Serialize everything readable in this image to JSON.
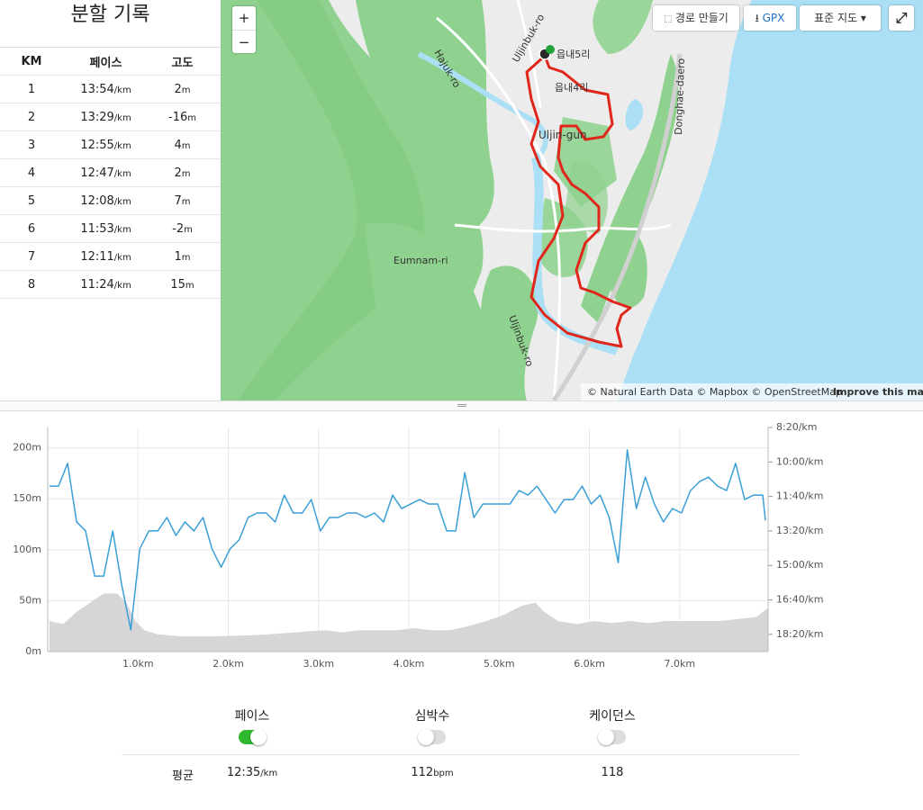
{
  "splits": {
    "title": "분할 기록",
    "headers": [
      "KM",
      "페이스",
      "고도"
    ],
    "rows": [
      {
        "km": 1,
        "pace": "13:54",
        "pace_unit": "/km",
        "elev": 2,
        "elev_unit": "m"
      },
      {
        "km": 2,
        "pace": "13:29",
        "pace_unit": "/km",
        "elev": -16,
        "elev_unit": "m"
      },
      {
        "km": 3,
        "pace": "12:55",
        "pace_unit": "/km",
        "elev": 4,
        "elev_unit": "m"
      },
      {
        "km": 4,
        "pace": "12:47",
        "pace_unit": "/km",
        "elev": 2,
        "elev_unit": "m"
      },
      {
        "km": 5,
        "pace": "12:08",
        "pace_unit": "/km",
        "elev": 7,
        "elev_unit": "m"
      },
      {
        "km": 6,
        "pace": "11:53",
        "pace_unit": "/km",
        "elev": -2,
        "elev_unit": "m"
      },
      {
        "km": 7,
        "pace": "12:11",
        "pace_unit": "/km",
        "elev": 1,
        "elev_unit": "m"
      },
      {
        "km": 8,
        "pace": "11:24",
        "pace_unit": "/km",
        "elev": 15,
        "elev_unit": "m"
      }
    ]
  },
  "map": {
    "zoom_in": "+",
    "zoom_out": "−",
    "buttons": [
      "경로 만들기",
      "GPX",
      "표준 지도"
    ],
    "labels": [
      "읍내5리",
      "읍내4리",
      "Uljin-gun",
      "Eumnam-ri",
      "Hajuk-ro",
      "Uljinbuk-ro",
      "Uljinbuk-ro",
      "Donghae-daero"
    ],
    "attribution": "© Natural Earth Data © Mapbox © OpenStreetMap",
    "improve": "Improve this map"
  },
  "chart_data": {
    "type": "line",
    "xlim": [
      0,
      7.98
    ],
    "ylim": [
      0,
      220
    ],
    "y2lim": [
      1150,
      500
    ],
    "grid": true,
    "xticks": [
      {
        "value": 1,
        "label": "1.0km"
      },
      {
        "value": 2,
        "label": "2.0km"
      },
      {
        "value": 3,
        "label": "3.0km"
      },
      {
        "value": 4,
        "label": "4.0km"
      },
      {
        "value": 5,
        "label": "5.0km"
      },
      {
        "value": 6,
        "label": "6.0km"
      },
      {
        "value": 7,
        "label": "7.0km"
      }
    ],
    "yticks": [
      {
        "value": 0,
        "label": "0m"
      },
      {
        "value": 50,
        "label": "50m"
      },
      {
        "value": 100,
        "label": "100m"
      },
      {
        "value": 150,
        "label": "150m"
      },
      {
        "value": 200,
        "label": "200m"
      }
    ],
    "y2ticks": [
      {
        "value": 500,
        "label": "8:20/km"
      },
      {
        "value": 600,
        "label": "10:00/km"
      },
      {
        "value": 700,
        "label": "11:40/km"
      },
      {
        "value": 800,
        "label": "13:20/km"
      },
      {
        "value": 900,
        "label": "15:00/km"
      },
      {
        "value": 1000,
        "label": "16:40/km"
      },
      {
        "value": 1100,
        "label": "18:20/km"
      }
    ],
    "series": [
      {
        "type": "area",
        "color": "#d6d6d6",
        "x": [
          0.02,
          0.17,
          0.32,
          0.47,
          0.62,
          0.77,
          0.87,
          0.97,
          1.07,
          1.22,
          1.47,
          1.86,
          2.26,
          2.46,
          2.76,
          3.06,
          3.26,
          3.46,
          3.66,
          3.86,
          4.06,
          4.26,
          4.46,
          4.66,
          4.86,
          5.05,
          5.25,
          5.4,
          5.5,
          5.65,
          5.86,
          6.05,
          6.25,
          6.45,
          6.65,
          6.85,
          7.05,
          7.25,
          7.45,
          7.65,
          7.85,
          7.98
        ],
        "values": [
          30,
          27,
          39,
          48,
          57,
          57,
          48,
          30,
          21,
          17,
          15,
          15,
          16,
          17,
          19,
          21,
          19,
          21,
          21,
          21,
          23,
          21,
          21,
          25,
          30,
          36,
          45,
          48,
          39,
          30,
          27,
          30,
          28,
          30,
          28,
          30,
          30,
          30,
          30,
          32,
          34,
          43
        ]
      },
      {
        "type": "line",
        "axis": "y2",
        "color": "#3a9fd6",
        "x": [
          0.02,
          0.12,
          0.22,
          0.32,
          0.42,
          0.52,
          0.62,
          0.72,
          0.82,
          0.92,
          1.02,
          1.12,
          1.22,
          1.32,
          1.42,
          1.52,
          1.62,
          1.72,
          1.82,
          1.92,
          2.02,
          2.12,
          2.22,
          2.32,
          2.42,
          2.52,
          2.62,
          2.72,
          2.82,
          2.92,
          3.02,
          3.12,
          3.22,
          3.32,
          3.42,
          3.52,
          3.62,
          3.72,
          3.82,
          3.92,
          4.02,
          4.12,
          4.22,
          4.32,
          4.42,
          4.52,
          4.62,
          4.72,
          4.82,
          4.92,
          5.02,
          5.12,
          5.22,
          5.32,
          5.42,
          5.52,
          5.62,
          5.72,
          5.82,
          5.92,
          6.02,
          6.12,
          6.22,
          6.32,
          6.42,
          6.52,
          6.62,
          6.72,
          6.82,
          6.92,
          7.02,
          7.12,
          7.22,
          7.32,
          7.42,
          7.52,
          7.62,
          7.72,
          7.82,
          7.92,
          7.95
        ],
        "values": [
          670,
          670,
          604,
          774,
          800,
          931,
          931,
          800,
          957,
          1087,
          852,
          800,
          800,
          761,
          813,
          774,
          800,
          761,
          852,
          905,
          852,
          826,
          761,
          748,
          748,
          774,
          696,
          748,
          748,
          709,
          800,
          761,
          761,
          748,
          748,
          761,
          748,
          774,
          696,
          735,
          722,
          709,
          722,
          722,
          800,
          800,
          631,
          761,
          722,
          722,
          722,
          722,
          683,
          696,
          670,
          709,
          748,
          709,
          709,
          670,
          722,
          696,
          761,
          892,
          565,
          735,
          644,
          722,
          774,
          735,
          748,
          683,
          657,
          644,
          670,
          683,
          604,
          709,
          696,
          696,
          769
        ]
      }
    ]
  },
  "stats": {
    "metrics": [
      {
        "label": "페이스",
        "on": true
      },
      {
        "label": "심박수",
        "on": false
      },
      {
        "label": "케이던스",
        "on": false
      }
    ],
    "row_label": "평균",
    "values": [
      {
        "value": "12:35",
        "unit": "/km"
      },
      {
        "value": 112,
        "unit": "bpm"
      },
      {
        "value": 118
      }
    ]
  }
}
